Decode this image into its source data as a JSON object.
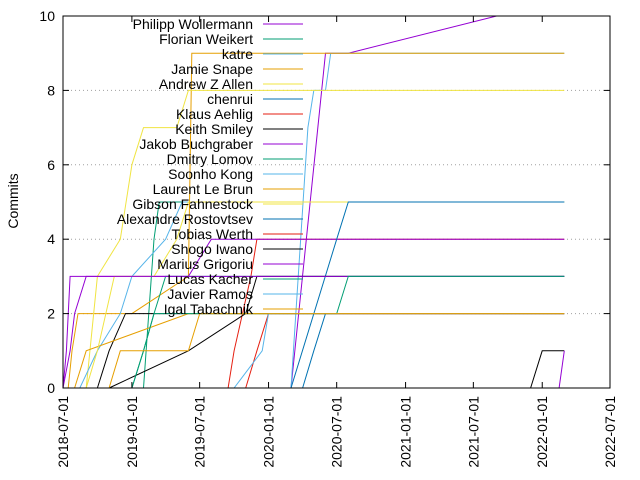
{
  "chart_data": {
    "type": "line",
    "title": "",
    "xlabel": "",
    "ylabel": "Commits",
    "xlim": [
      "2018-07-01",
      "2022-07-01"
    ],
    "ylim": [
      0,
      10
    ],
    "x_ticks": [
      "2018-07-01",
      "2019-01-01",
      "2019-07-01",
      "2020-01-01",
      "2020-07-01",
      "2021-01-01",
      "2021-07-01",
      "2022-01-01",
      "2022-07-01"
    ],
    "y_ticks": [
      0,
      2,
      4,
      6,
      8,
      10
    ],
    "grid": "horizontal dotted at y=2,4,6,8",
    "legend_placement": "top-left",
    "series": [
      {
        "name": "Philipp Wollermann",
        "color": "#9400d3",
        "x": [
          "2020-03-01",
          "2020-06-01",
          "2020-08-01",
          "2021-09-01"
        ],
        "y": [
          0,
          9,
          9,
          10
        ]
      },
      {
        "name": "Florian Weikert",
        "color": "#009e73",
        "x": [
          "2019-02-01",
          "2019-03-01",
          "2019-03-15"
        ],
        "y": [
          0,
          4,
          5
        ]
      },
      {
        "name": "katre",
        "color": "#56b4e9",
        "x": [
          "2020-03-01",
          "2020-04-15",
          "2020-05-01",
          "2020-06-01",
          "2020-06-15",
          "2020-07-01"
        ],
        "y": [
          0,
          7,
          8,
          8,
          9,
          9
        ]
      },
      {
        "name": "Jamie Snape",
        "color": "#e69f00",
        "x": [
          "2018-07-15",
          "2018-07-25",
          "2018-08-10",
          "2019-01-01",
          "2019-06-01",
          "2019-06-10"
        ],
        "y": [
          0,
          1,
          2,
          2,
          3,
          9
        ]
      },
      {
        "name": "Andrew Z Allen",
        "color": "#f0e442",
        "x": [
          "2018-09-01",
          "2018-10-01",
          "2018-12-01",
          "2019-01-01",
          "2019-02-01",
          "2019-04-01",
          "2019-05-01",
          "2019-06-01",
          "2019-07-01",
          "2019-08-01"
        ],
        "y": [
          0,
          3,
          4,
          6,
          7,
          7,
          7,
          8,
          8,
          8
        ]
      },
      {
        "name": "chenrui",
        "color": "#0072b2",
        "x": [
          "2020-04-01",
          "2020-05-01",
          "2020-06-01",
          "2020-07-01"
        ],
        "y": [
          0,
          1,
          2,
          2
        ]
      },
      {
        "name": "Klaus Aehlig",
        "color": "#e51e10",
        "x": [
          "2019-09-15",
          "2019-10-01",
          "2019-11-15",
          "2019-12-01"
        ],
        "y": [
          0,
          1,
          3,
          4
        ]
      },
      {
        "name": "Keith Smiley",
        "color": "#000000",
        "x": [
          "2018-10-01",
          "2018-11-01",
          "2018-12-15"
        ],
        "y": [
          0,
          1,
          2
        ]
      },
      {
        "name": "Jakob Buchgraber",
        "color": "#9400d3",
        "x": [
          "2018-07-01",
          "2018-07-20",
          "2018-08-01",
          "2018-09-01",
          "2019-06-01",
          "2019-08-01",
          "2019-10-01"
        ],
        "y": [
          0,
          1,
          2,
          3,
          3,
          4,
          4
        ]
      },
      {
        "name": "Dmitry Lomov",
        "color": "#009e73",
        "x": [
          "2019-01-01",
          "2019-02-01",
          "2019-03-01",
          "2019-04-01"
        ],
        "y": [
          0,
          1,
          2,
          3
        ]
      },
      {
        "name": "Soonho Kong",
        "color": "#56b4e9",
        "x": [
          "2018-08-15",
          "2018-10-01",
          "2018-12-01",
          "2019-01-01",
          "2019-04-01",
          "2019-05-15"
        ],
        "y": [
          0,
          1,
          2,
          3,
          4,
          5
        ]
      },
      {
        "name": "Laurent Le Brun",
        "color": "#e69f00",
        "x": [
          "2018-08-01",
          "2018-09-01",
          "2019-06-01"
        ],
        "y": [
          0,
          1,
          2
        ]
      },
      {
        "name": "Gibson Fahnestock",
        "color": "#f0e442",
        "x": [
          "2018-09-01",
          "2018-10-01",
          "2018-11-15",
          "2019-01-15",
          "2019-03-01",
          "2019-05-01",
          "2019-06-01",
          "2019-07-01"
        ],
        "y": [
          0,
          1,
          3,
          3,
          3,
          4,
          5,
          5
        ]
      },
      {
        "name": "Alexandre Rostovtsev",
        "color": "#0072b2",
        "x": [
          "2020-03-01",
          "2020-07-01",
          "2020-08-01"
        ],
        "y": [
          0,
          4,
          5
        ]
      },
      {
        "name": "Tobias Werth",
        "color": "#e51e10",
        "x": [
          "2019-11-01",
          "2019-12-01",
          "2020-01-01"
        ],
        "y": [
          0,
          1,
          2
        ]
      },
      {
        "name": "Shogo Iwano",
        "color": "#000000",
        "x": [
          "2018-11-01",
          "2019-06-01",
          "2019-11-01",
          "2019-12-01"
        ],
        "y": [
          0,
          1,
          2,
          3
        ]
      },
      {
        "name": "Marius Grigoriu",
        "color": "#9400d3",
        "x": [
          "2018-07-01",
          "2018-07-10",
          "2018-07-20"
        ],
        "y": [
          0,
          1,
          3
        ]
      },
      {
        "name": "Lucas Kacher",
        "color": "#009e73",
        "x": [
          "2019-01-01",
          "2019-02-01",
          "2019-03-01",
          "2020-06-01",
          "2020-07-01",
          "2020-08-01"
        ],
        "y": [
          0,
          1,
          2,
          2,
          2,
          3
        ]
      },
      {
        "name": "Javier Ramos",
        "color": "#56b4e9",
        "x": [
          "2019-10-01",
          "2019-12-15",
          "2020-01-01",
          "2020-02-01",
          "2020-03-01"
        ],
        "y": [
          0,
          1,
          2,
          2,
          2
        ]
      },
      {
        "name": "Igal Tabachnik",
        "color": "#e69f00",
        "x": [
          "2018-11-01",
          "2018-12-01",
          "2019-06-01",
          "2019-07-01"
        ],
        "y": [
          0,
          1,
          1,
          2
        ]
      },
      {
        "name": "",
        "color": "#000000",
        "x": [
          "2021-12-01",
          "2022-01-01"
        ],
        "y": [
          0,
          1
        ]
      },
      {
        "name": "",
        "color": "#9400d3",
        "x": [
          "2022-02-15",
          "2022-03-01"
        ],
        "y": [
          0,
          1
        ]
      }
    ]
  }
}
